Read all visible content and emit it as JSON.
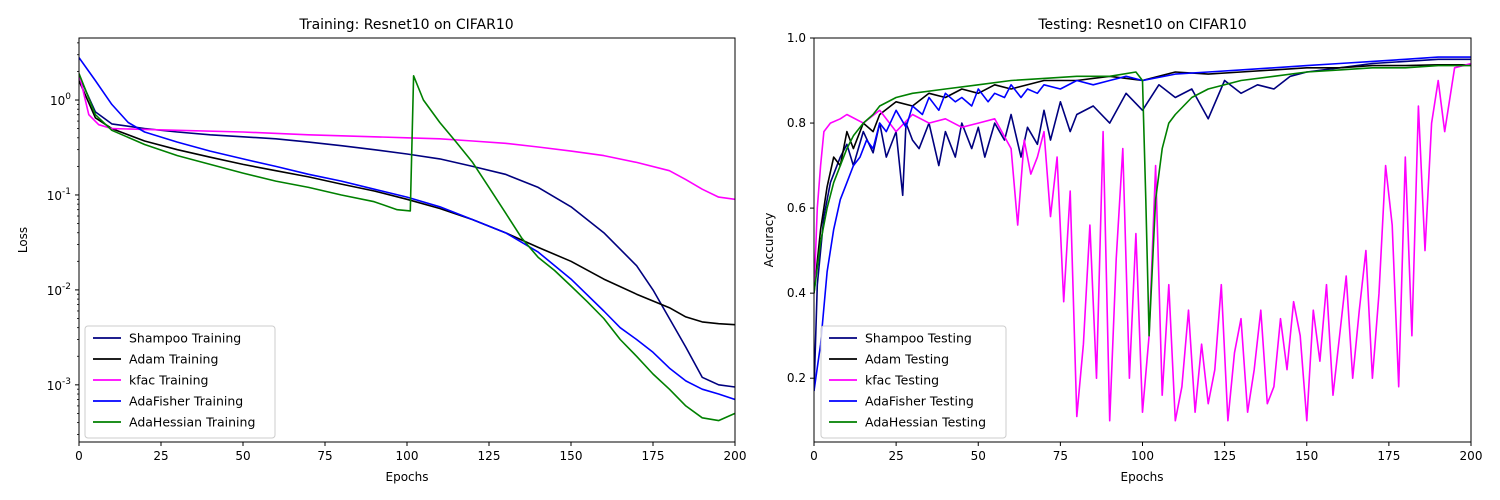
{
  "chart_data": [
    {
      "type": "line",
      "title": "Training: Resnet10 on CIFAR10",
      "xlabel": "Epochs",
      "ylabel": "Loss",
      "xlim": [
        0,
        200
      ],
      "ylim": [
        0.00025,
        4.5
      ],
      "yscale": "log",
      "xticks": [
        "0",
        "25",
        "50",
        "75",
        "100",
        "125",
        "150",
        "175",
        "200"
      ],
      "yticks": [
        "10^0",
        "10^-1",
        "10^-2",
        "10^-3"
      ],
      "ytick_values": [
        1,
        0.1,
        0.01,
        0.001
      ],
      "grid": false,
      "legend_position": "lower-left",
      "series": [
        {
          "name": "Shampoo Training",
          "color": "#00007f",
          "x": [
            0,
            5,
            10,
            20,
            30,
            40,
            50,
            60,
            70,
            80,
            90,
            100,
            110,
            120,
            130,
            140,
            150,
            160,
            170,
            175,
            180,
            185,
            190,
            195,
            200
          ],
          "y": [
            1.8,
            0.75,
            0.56,
            0.5,
            0.46,
            0.43,
            0.41,
            0.39,
            0.36,
            0.33,
            0.3,
            0.27,
            0.24,
            0.2,
            0.165,
            0.12,
            0.075,
            0.04,
            0.018,
            0.01,
            0.005,
            0.0025,
            0.0012,
            0.001,
            0.00095
          ]
        },
        {
          "name": "Adam Training",
          "color": "#000000",
          "x": [
            0,
            5,
            10,
            20,
            30,
            40,
            50,
            60,
            70,
            80,
            90,
            100,
            110,
            120,
            130,
            140,
            150,
            160,
            170,
            180,
            185,
            190,
            195,
            200
          ],
          "y": [
            1.6,
            0.65,
            0.5,
            0.37,
            0.3,
            0.25,
            0.21,
            0.18,
            0.155,
            0.13,
            0.11,
            0.09,
            0.072,
            0.055,
            0.04,
            0.028,
            0.02,
            0.013,
            0.009,
            0.0065,
            0.0052,
            0.0046,
            0.0044,
            0.0043
          ]
        },
        {
          "name": "kfac Training",
          "color": "#ff00ff",
          "x": [
            0,
            3,
            6,
            10,
            20,
            30,
            50,
            70,
            90,
            100,
            110,
            120,
            130,
            140,
            150,
            160,
            170,
            180,
            185,
            190,
            195,
            200
          ],
          "y": [
            1.9,
            0.7,
            0.55,
            0.5,
            0.49,
            0.48,
            0.46,
            0.43,
            0.41,
            0.4,
            0.39,
            0.37,
            0.35,
            0.32,
            0.29,
            0.26,
            0.22,
            0.18,
            0.145,
            0.115,
            0.095,
            0.09
          ]
        },
        {
          "name": "AdaFisher Training",
          "color": "#0000ff",
          "x": [
            0,
            5,
            10,
            15,
            20,
            30,
            40,
            50,
            60,
            70,
            80,
            90,
            100,
            110,
            120,
            130,
            140,
            150,
            160,
            165,
            170,
            175,
            180,
            185,
            190,
            195,
            200
          ],
          "y": [
            2.8,
            1.6,
            0.9,
            0.58,
            0.46,
            0.36,
            0.29,
            0.24,
            0.2,
            0.165,
            0.14,
            0.115,
            0.095,
            0.075,
            0.055,
            0.04,
            0.025,
            0.013,
            0.006,
            0.004,
            0.003,
            0.0022,
            0.0015,
            0.0011,
            0.0009,
            0.0008,
            0.0007
          ]
        },
        {
          "name": "AdaHessian Training",
          "color": "#008000",
          "x": [
            0,
            5,
            10,
            20,
            30,
            40,
            50,
            60,
            70,
            80,
            90,
            97,
            101,
            102,
            105,
            110,
            115,
            120,
            125,
            130,
            135,
            140,
            145,
            150,
            155,
            160,
            165,
            170,
            175,
            180,
            185,
            190,
            195,
            200
          ],
          "y": [
            1.9,
            0.7,
            0.48,
            0.34,
            0.26,
            0.21,
            0.17,
            0.14,
            0.12,
            0.1,
            0.085,
            0.07,
            0.068,
            1.8,
            1.0,
            0.58,
            0.36,
            0.22,
            0.12,
            0.065,
            0.035,
            0.022,
            0.016,
            0.011,
            0.0075,
            0.005,
            0.003,
            0.002,
            0.0013,
            0.0009,
            0.0006,
            0.00045,
            0.00042,
            0.0005
          ]
        }
      ]
    },
    {
      "type": "line",
      "title": "Testing: Resnet10 on CIFAR10",
      "xlabel": "Epochs",
      "ylabel": "Accuracy",
      "xlim": [
        0,
        200
      ],
      "ylim": [
        0.05,
        1.0
      ],
      "xticks": [
        "0",
        "25",
        "50",
        "75",
        "100",
        "125",
        "150",
        "175",
        "200"
      ],
      "yticks": [
        "0.2",
        "0.4",
        "0.6",
        "0.8",
        "1.0"
      ],
      "ytick_values": [
        0.2,
        0.4,
        0.6,
        0.8,
        1.0
      ],
      "grid": false,
      "legend_position": "lower-left",
      "series": [
        {
          "name": "Shampoo Testing",
          "color": "#00007f",
          "x": [
            0,
            1,
            3,
            5,
            8,
            10,
            12,
            15,
            18,
            20,
            22,
            25,
            27,
            28,
            30,
            32,
            35,
            38,
            40,
            43,
            45,
            48,
            50,
            52,
            55,
            58,
            60,
            63,
            65,
            68,
            70,
            72,
            75,
            78,
            80,
            85,
            90,
            95,
            100,
            105,
            110,
            115,
            120,
            125,
            130,
            135,
            140,
            145,
            150,
            160,
            170,
            180,
            190,
            200
          ],
          "y": [
            0.17,
            0.42,
            0.58,
            0.66,
            0.72,
            0.75,
            0.7,
            0.78,
            0.73,
            0.8,
            0.72,
            0.78,
            0.63,
            0.8,
            0.76,
            0.74,
            0.8,
            0.7,
            0.78,
            0.72,
            0.8,
            0.74,
            0.79,
            0.72,
            0.8,
            0.76,
            0.82,
            0.72,
            0.79,
            0.75,
            0.83,
            0.76,
            0.85,
            0.78,
            0.82,
            0.84,
            0.8,
            0.87,
            0.83,
            0.89,
            0.86,
            0.88,
            0.81,
            0.9,
            0.87,
            0.89,
            0.88,
            0.91,
            0.92,
            0.93,
            0.94,
            0.945,
            0.95,
            0.95
          ]
        },
        {
          "name": "Adam Testing",
          "color": "#000000",
          "x": [
            0,
            2,
            4,
            6,
            8,
            10,
            12,
            15,
            18,
            20,
            25,
            30,
            35,
            40,
            45,
            50,
            55,
            60,
            70,
            80,
            90,
            100,
            110,
            120,
            130,
            140,
            150,
            160,
            170,
            180,
            190,
            200
          ],
          "y": [
            0.4,
            0.55,
            0.65,
            0.72,
            0.7,
            0.78,
            0.74,
            0.8,
            0.78,
            0.82,
            0.85,
            0.84,
            0.87,
            0.86,
            0.88,
            0.87,
            0.89,
            0.88,
            0.9,
            0.9,
            0.91,
            0.9,
            0.92,
            0.915,
            0.92,
            0.925,
            0.93,
            0.93,
            0.935,
            0.935,
            0.937,
            0.937
          ]
        },
        {
          "name": "kfac Testing",
          "color": "#ff00ff",
          "x": [
            0,
            1,
            2,
            3,
            5,
            8,
            10,
            15,
            20,
            25,
            30,
            35,
            40,
            45,
            50,
            55,
            60,
            62,
            64,
            66,
            68,
            70,
            72,
            74,
            76,
            78,
            80,
            82,
            84,
            86,
            88,
            90,
            92,
            94,
            96,
            98,
            100,
            102,
            104,
            106,
            108,
            110,
            112,
            114,
            116,
            118,
            120,
            122,
            124,
            126,
            128,
            130,
            132,
            134,
            136,
            138,
            140,
            142,
            144,
            146,
            148,
            150,
            152,
            154,
            156,
            158,
            160,
            162,
            164,
            166,
            168,
            170,
            172,
            174,
            176,
            178,
            180,
            182,
            184,
            186,
            188,
            190,
            192,
            195,
            200
          ],
          "y": [
            0.4,
            0.6,
            0.7,
            0.78,
            0.8,
            0.81,
            0.82,
            0.8,
            0.83,
            0.78,
            0.82,
            0.8,
            0.81,
            0.79,
            0.8,
            0.81,
            0.74,
            0.56,
            0.76,
            0.68,
            0.72,
            0.78,
            0.58,
            0.72,
            0.38,
            0.64,
            0.11,
            0.28,
            0.56,
            0.2,
            0.78,
            0.1,
            0.48,
            0.74,
            0.2,
            0.54,
            0.12,
            0.3,
            0.7,
            0.16,
            0.42,
            0.1,
            0.18,
            0.36,
            0.12,
            0.28,
            0.14,
            0.22,
            0.42,
            0.1,
            0.26,
            0.34,
            0.12,
            0.22,
            0.36,
            0.14,
            0.18,
            0.34,
            0.22,
            0.38,
            0.3,
            0.1,
            0.36,
            0.24,
            0.42,
            0.16,
            0.3,
            0.44,
            0.2,
            0.36,
            0.5,
            0.2,
            0.4,
            0.7,
            0.56,
            0.18,
            0.72,
            0.3,
            0.84,
            0.5,
            0.8,
            0.9,
            0.78,
            0.93,
            0.94
          ]
        },
        {
          "name": "AdaFisher Testing",
          "color": "#0000ff",
          "x": [
            0,
            2,
            4,
            6,
            8,
            10,
            12,
            14,
            16,
            18,
            20,
            22,
            25,
            28,
            30,
            33,
            35,
            38,
            40,
            43,
            45,
            48,
            50,
            53,
            55,
            58,
            60,
            63,
            65,
            68,
            70,
            75,
            80,
            85,
            90,
            95,
            100,
            110,
            120,
            130,
            140,
            150,
            160,
            170,
            180,
            190,
            200
          ],
          "y": [
            0.17,
            0.28,
            0.45,
            0.55,
            0.62,
            0.66,
            0.7,
            0.72,
            0.76,
            0.74,
            0.8,
            0.78,
            0.83,
            0.79,
            0.84,
            0.82,
            0.86,
            0.83,
            0.87,
            0.85,
            0.86,
            0.84,
            0.88,
            0.85,
            0.87,
            0.86,
            0.89,
            0.86,
            0.88,
            0.87,
            0.89,
            0.88,
            0.9,
            0.89,
            0.9,
            0.91,
            0.9,
            0.915,
            0.92,
            0.925,
            0.93,
            0.935,
            0.94,
            0.945,
            0.95,
            0.955,
            0.955
          ]
        },
        {
          "name": "AdaHessian Testing",
          "color": "#008000",
          "x": [
            0,
            2,
            4,
            6,
            8,
            10,
            12,
            15,
            18,
            20,
            25,
            30,
            40,
            50,
            60,
            70,
            80,
            90,
            98,
            100,
            101,
            102,
            104,
            106,
            108,
            110,
            115,
            120,
            130,
            140,
            150,
            160,
            170,
            180,
            190,
            200
          ],
          "y": [
            0.4,
            0.52,
            0.6,
            0.66,
            0.7,
            0.74,
            0.77,
            0.8,
            0.82,
            0.84,
            0.86,
            0.87,
            0.88,
            0.89,
            0.9,
            0.905,
            0.91,
            0.91,
            0.92,
            0.9,
            0.62,
            0.3,
            0.62,
            0.74,
            0.8,
            0.82,
            0.86,
            0.88,
            0.9,
            0.91,
            0.92,
            0.925,
            0.93,
            0.93,
            0.935,
            0.935
          ]
        }
      ]
    }
  ]
}
